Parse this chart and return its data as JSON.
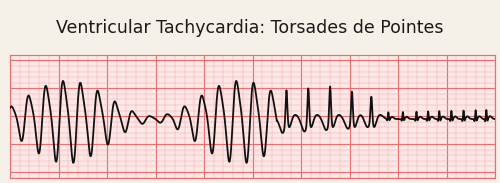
{
  "title": "Ventricular Tachycardia: Torsades de Pointes",
  "title_fontsize": 12.5,
  "title_color": "#1a1a1a",
  "title_bg": "#f5f0e8",
  "ecg_bg": "#fde8e8",
  "grid_major_color": "#e87070",
  "grid_minor_color": "#f2aaaa",
  "ecg_color": "#111111",
  "ecg_linewidth": 1.3,
  "xlim": [
    0,
    10
  ],
  "ylim": [
    -2.2,
    2.2
  ],
  "figsize": [
    5.0,
    1.83
  ],
  "dpi": 100
}
